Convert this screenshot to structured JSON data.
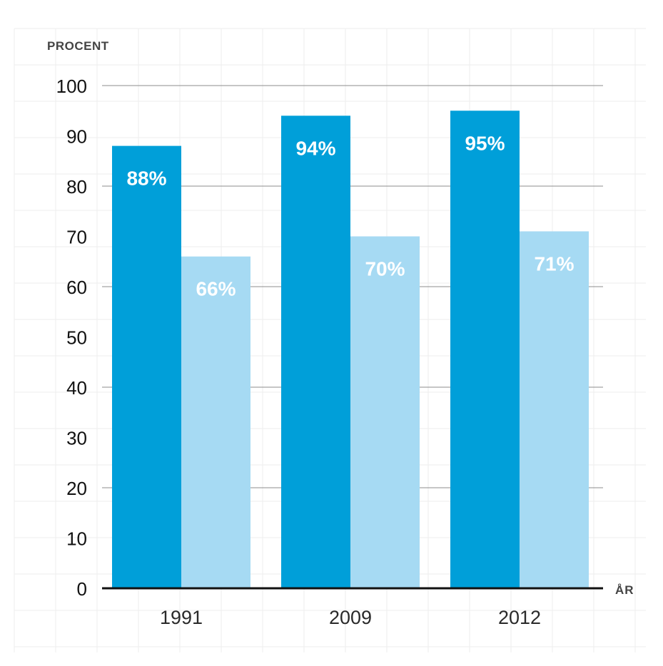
{
  "chart_data": {
    "type": "bar",
    "categories": [
      "1991",
      "2009",
      "2012"
    ],
    "series": [
      {
        "values": [
          88,
          94,
          95
        ],
        "labels": [
          "88%",
          "94%",
          "95%"
        ]
      },
      {
        "values": [
          66,
          70,
          71
        ],
        "labels": [
          "66%",
          "70%",
          "71%"
        ]
      }
    ],
    "ylabel": "PROCENT",
    "xlabel": "ÅR",
    "yticks": [
      "0",
      "10",
      "20",
      "30",
      "40",
      "50",
      "60",
      "70",
      "80",
      "90",
      "100"
    ],
    "ylim": [
      0,
      100
    ],
    "grid": true,
    "colors": {
      "series_dark": "#009fd9",
      "series_light": "#a6daf3",
      "gridline": "#8c8c8c",
      "baseline": "#111111",
      "background_grid": "#eeeeee"
    }
  }
}
